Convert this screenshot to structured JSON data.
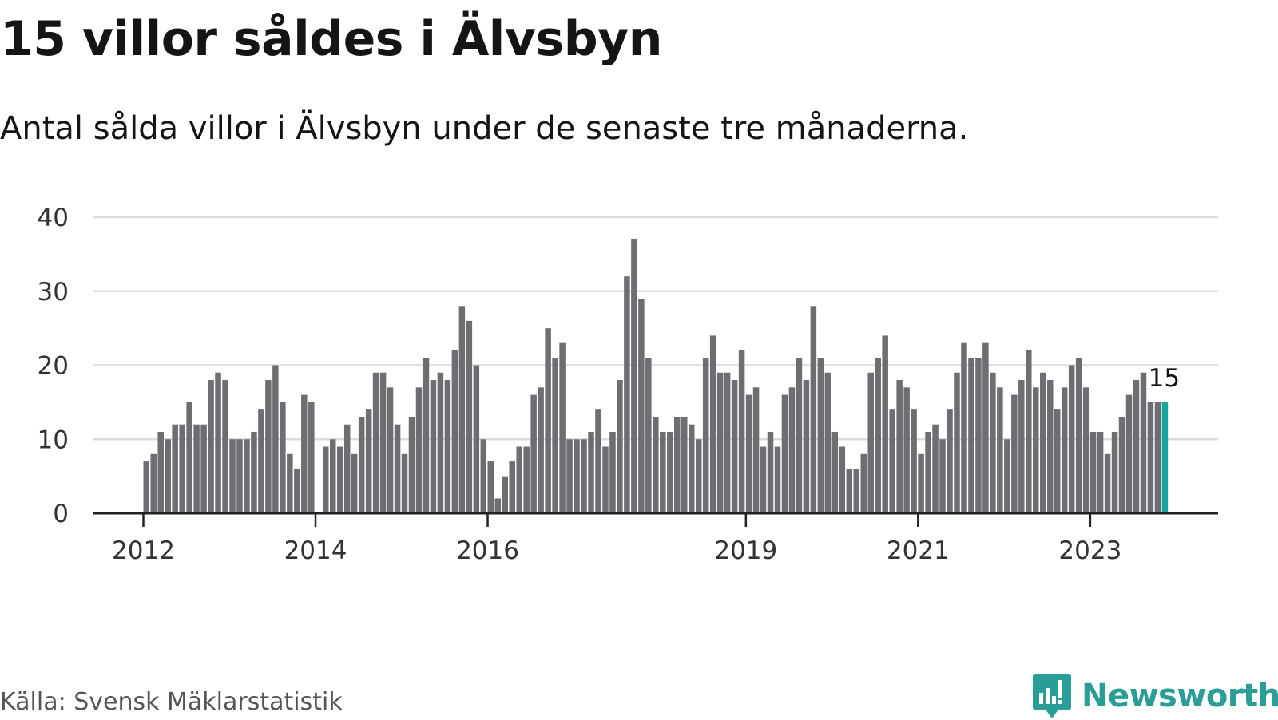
{
  "title": "15 villor såldes i Älvsbyn",
  "subtitle": "Antal sålda villor i Älvsbyn under de senaste tre månaderna.",
  "source": "Källa: Svensk Mäklarstatistik",
  "brand": {
    "name": "Newsworthy",
    "icon": "newsworthy-logo-icon",
    "color": "#2a9d96"
  },
  "colors": {
    "bar": "#6d6d72",
    "highlight": "#16a598",
    "grid": "#dcdcdc",
    "axis": "#222222"
  },
  "chart_data": {
    "type": "bar",
    "title": "15 villor såldes i Älvsbyn",
    "xlabel": "",
    "ylabel": "",
    "ylim": [
      0,
      40
    ],
    "yticks": [
      0,
      10,
      20,
      30,
      40
    ],
    "grid": true,
    "start": {
      "year": 2012,
      "month": 1
    },
    "frequency": "monthly",
    "xticks": [
      {
        "label": "2012",
        "year": 2012
      },
      {
        "label": "2014",
        "year": 2014
      },
      {
        "label": "2016",
        "year": 2016
      },
      {
        "label": "2019",
        "year": 2019
      },
      {
        "label": "2021",
        "year": 2021
      },
      {
        "label": "2023",
        "year": 2023
      }
    ],
    "values": [
      7,
      8,
      11,
      10,
      12,
      12,
      15,
      12,
      12,
      18,
      19,
      18,
      10,
      10,
      10,
      11,
      14,
      18,
      20,
      15,
      8,
      6,
      16,
      15,
      null,
      9,
      10,
      9,
      12,
      8,
      13,
      14,
      19,
      19,
      17,
      12,
      8,
      13,
      17,
      21,
      18,
      19,
      18,
      22,
      28,
      26,
      20,
      10,
      7,
      2,
      5,
      7,
      9,
      9,
      16,
      17,
      25,
      21,
      23,
      10,
      10,
      10,
      11,
      14,
      9,
      11,
      18,
      32,
      37,
      29,
      21,
      13,
      11,
      11,
      13,
      13,
      12,
      10,
      21,
      24,
      19,
      19,
      18,
      22,
      16,
      17,
      9,
      11,
      9,
      16,
      17,
      21,
      18,
      28,
      21,
      19,
      11,
      9,
      6,
      6,
      8,
      19,
      21,
      24,
      14,
      18,
      17,
      14,
      8,
      11,
      12,
      10,
      14,
      19,
      23,
      21,
      21,
      23,
      19,
      17,
      10,
      16,
      18,
      22,
      17,
      19,
      18,
      14,
      17,
      20,
      21,
      17,
      11,
      11,
      8,
      11,
      13,
      16,
      18,
      19,
      15,
      15,
      15
    ],
    "highlight_index": 142,
    "annotation": {
      "label": "15",
      "index": 142
    }
  }
}
